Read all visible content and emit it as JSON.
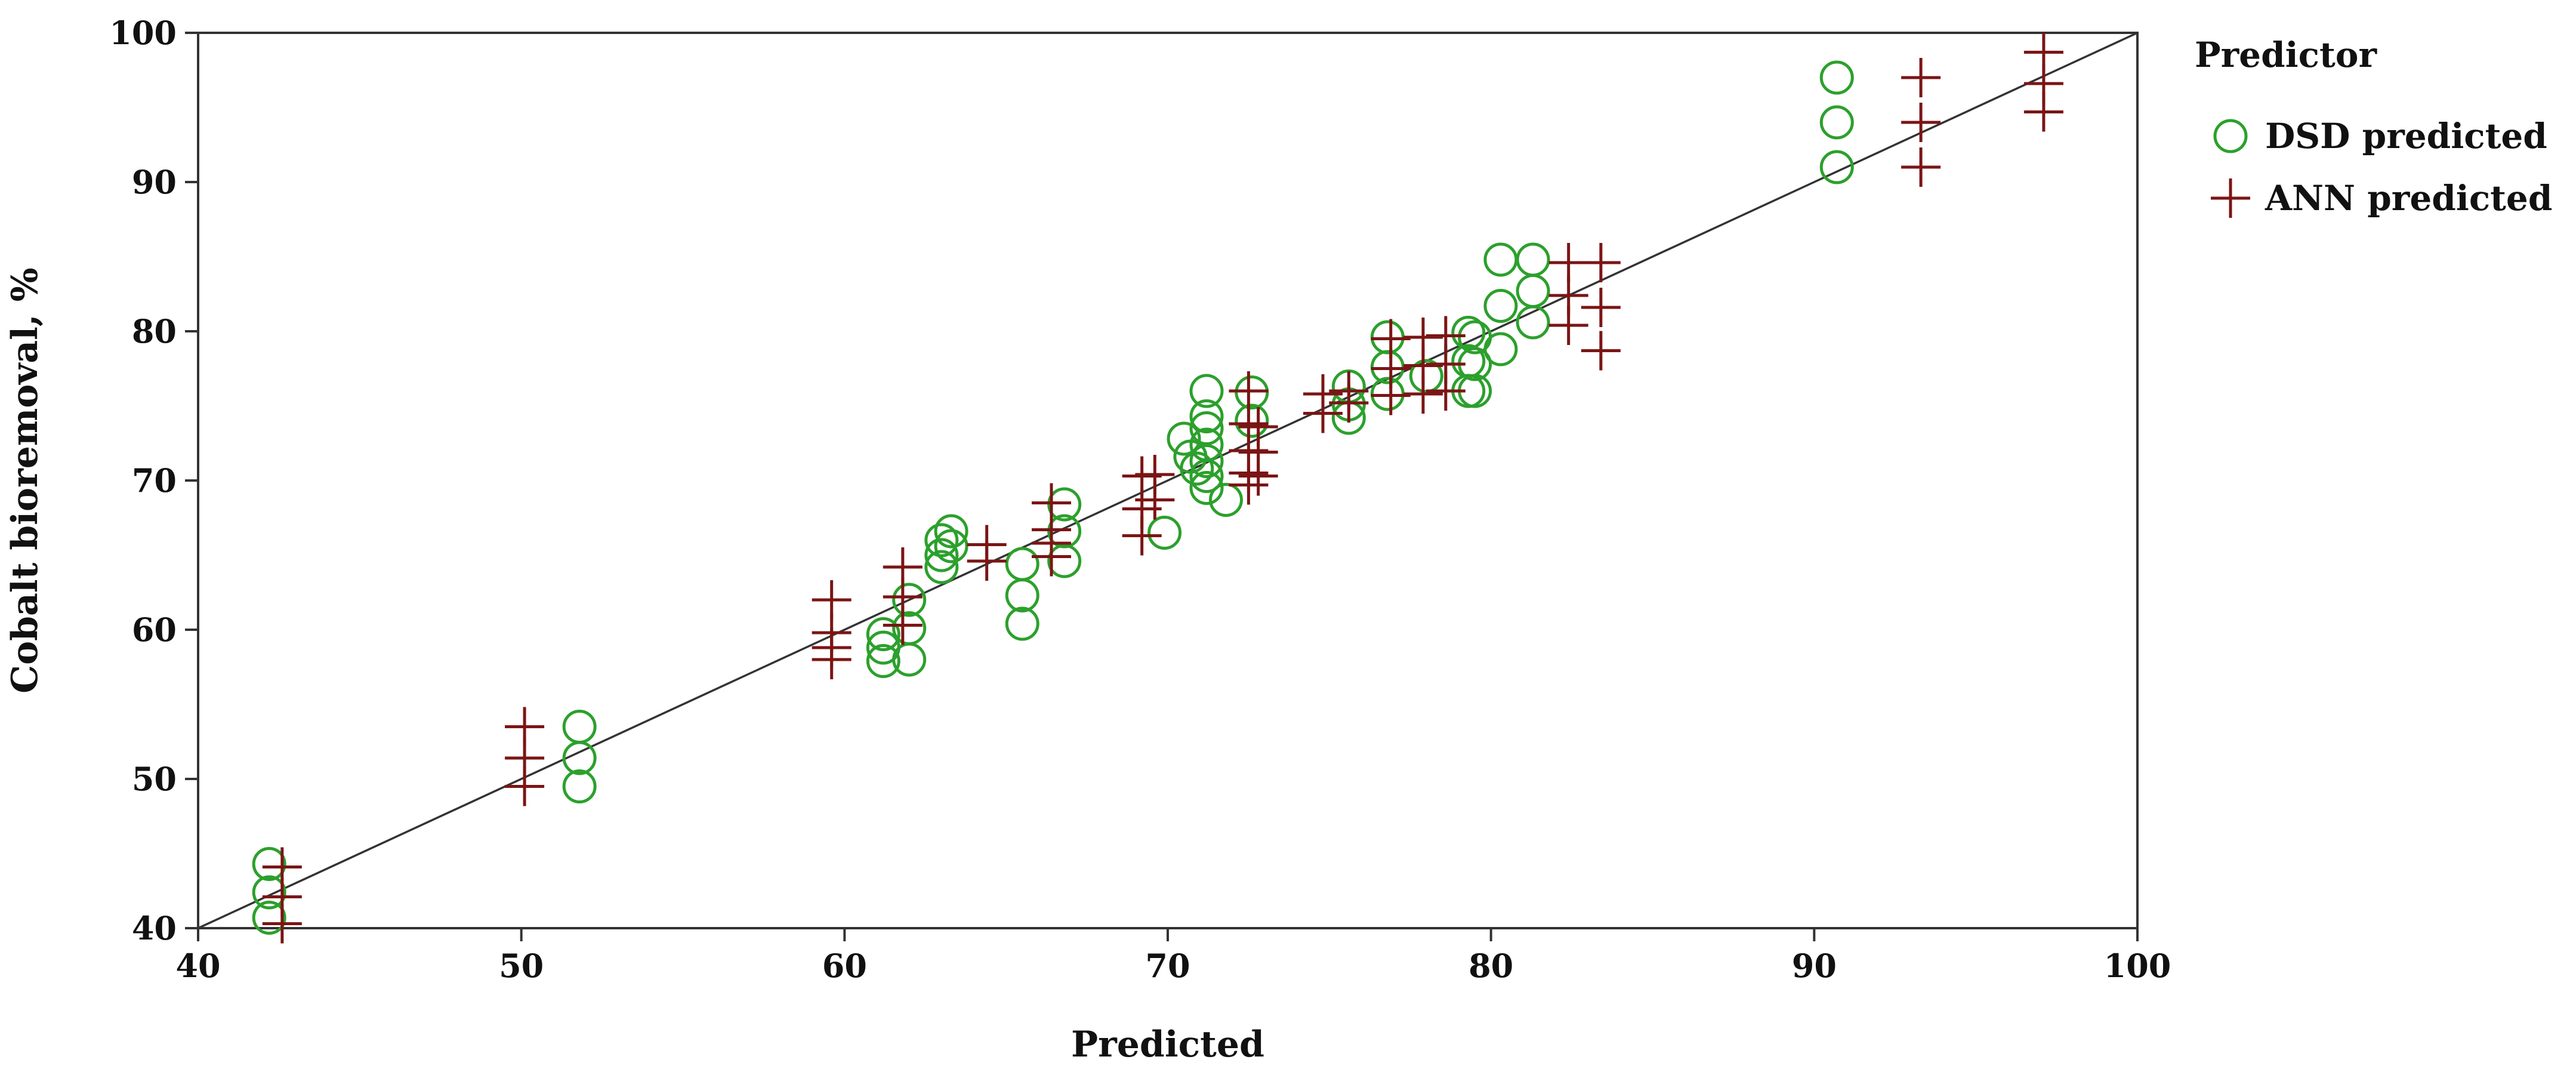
{
  "chart_data": {
    "type": "scatter",
    "title": "",
    "xlabel": "Predicted",
    "ylabel": "Cobalt bioremoval, %",
    "xlim": [
      40,
      100
    ],
    "ylim": [
      40,
      100
    ],
    "xticks": [
      40,
      50,
      60,
      70,
      80,
      90,
      100
    ],
    "yticks": [
      40,
      50,
      60,
      70,
      80,
      90,
      100
    ],
    "grid": false,
    "reference_line": {
      "from": [
        40,
        40
      ],
      "to": [
        100,
        100
      ],
      "color": "#333333"
    },
    "legend": {
      "title": "Predictor",
      "position": "right"
    },
    "series": [
      {
        "name": "DSD predicted",
        "marker": "circle",
        "color": "#2ca02c",
        "points": [
          [
            42.2,
            44.3
          ],
          [
            42.2,
            42.4
          ],
          [
            42.2,
            40.7
          ],
          [
            51.8,
            53.5
          ],
          [
            51.8,
            51.4
          ],
          [
            51.8,
            49.5
          ],
          [
            61.2,
            59.7
          ],
          [
            61.2,
            58.8
          ],
          [
            61.2,
            57.9
          ],
          [
            62.0,
            62.0
          ],
          [
            62.0,
            60.1
          ],
          [
            62.0,
            58.0
          ],
          [
            63.0,
            66.0
          ],
          [
            63.0,
            65.0
          ],
          [
            63.0,
            64.2
          ],
          [
            63.3,
            66.6
          ],
          [
            63.3,
            65.6
          ],
          [
            65.5,
            64.4
          ],
          [
            65.5,
            62.3
          ],
          [
            65.5,
            60.4
          ],
          [
            66.8,
            68.4
          ],
          [
            66.8,
            66.6
          ],
          [
            66.8,
            64.6
          ],
          [
            69.9,
            66.5
          ],
          [
            70.5,
            72.8
          ],
          [
            70.7,
            71.6
          ],
          [
            70.9,
            70.8
          ],
          [
            71.2,
            76.0
          ],
          [
            71.2,
            74.3
          ],
          [
            71.2,
            73.5
          ],
          [
            71.2,
            72.4
          ],
          [
            71.2,
            71.3
          ],
          [
            71.2,
            70.3
          ],
          [
            71.2,
            69.5
          ],
          [
            71.8,
            68.7
          ],
          [
            72.6,
            75.9
          ],
          [
            72.6,
            74.0
          ],
          [
            75.6,
            76.3
          ],
          [
            75.6,
            75.1
          ],
          [
            75.6,
            74.2
          ],
          [
            76.8,
            79.6
          ],
          [
            76.8,
            77.6
          ],
          [
            76.8,
            75.8
          ],
          [
            78.0,
            77.0
          ],
          [
            79.3,
            79.9
          ],
          [
            79.3,
            78.0
          ],
          [
            79.3,
            76.0
          ],
          [
            79.5,
            79.6
          ],
          [
            79.5,
            77.8
          ],
          [
            79.5,
            76.0
          ],
          [
            80.3,
            84.8
          ],
          [
            80.3,
            81.7
          ],
          [
            80.3,
            78.8
          ],
          [
            81.3,
            84.8
          ],
          [
            81.3,
            82.7
          ],
          [
            81.3,
            80.6
          ],
          [
            90.7,
            97.0
          ],
          [
            90.7,
            94.0
          ],
          [
            90.7,
            91.0
          ]
        ]
      },
      {
        "name": "ANN predicted",
        "marker": "plus",
        "color": "#7b1515",
        "points": [
          [
            42.6,
            44.1
          ],
          [
            42.6,
            42.1
          ],
          [
            42.6,
            40.3
          ],
          [
            50.1,
            53.5
          ],
          [
            50.1,
            51.4
          ],
          [
            50.1,
            49.5
          ],
          [
            59.6,
            62.0
          ],
          [
            59.6,
            59.8
          ],
          [
            59.6,
            58.8
          ],
          [
            59.6,
            58.0
          ],
          [
            61.8,
            64.2
          ],
          [
            61.8,
            62.2
          ],
          [
            61.8,
            60.3
          ],
          [
            64.4,
            65.7
          ],
          [
            64.4,
            64.6
          ],
          [
            66.4,
            68.5
          ],
          [
            66.4,
            66.7
          ],
          [
            66.4,
            65.8
          ],
          [
            66.4,
            64.9
          ],
          [
            69.2,
            70.3
          ],
          [
            69.2,
            68.1
          ],
          [
            69.2,
            66.3
          ],
          [
            69.6,
            70.4
          ],
          [
            69.6,
            68.7
          ],
          [
            72.5,
            76.0
          ],
          [
            72.5,
            73.8
          ],
          [
            72.5,
            72.0
          ],
          [
            72.5,
            70.5
          ],
          [
            72.5,
            69.7
          ],
          [
            72.8,
            73.6
          ],
          [
            72.8,
            71.9
          ],
          [
            72.8,
            70.3
          ],
          [
            74.8,
            75.8
          ],
          [
            74.8,
            74.5
          ],
          [
            75.6,
            76.0
          ],
          [
            75.6,
            75.2
          ],
          [
            76.9,
            79.5
          ],
          [
            76.9,
            77.5
          ],
          [
            76.9,
            75.7
          ],
          [
            77.9,
            79.6
          ],
          [
            77.9,
            77.7
          ],
          [
            77.9,
            75.8
          ],
          [
            78.6,
            79.7
          ],
          [
            78.6,
            77.8
          ],
          [
            78.6,
            76.0
          ],
          [
            82.4,
            84.6
          ],
          [
            82.4,
            82.4
          ],
          [
            82.4,
            80.4
          ],
          [
            83.4,
            84.6
          ],
          [
            83.4,
            81.6
          ],
          [
            83.4,
            78.7
          ],
          [
            93.3,
            97.0
          ],
          [
            93.3,
            94.0
          ],
          [
            93.3,
            91.0
          ],
          [
            97.1,
            98.7
          ],
          [
            97.1,
            96.6
          ],
          [
            97.1,
            94.7
          ]
        ]
      }
    ]
  }
}
